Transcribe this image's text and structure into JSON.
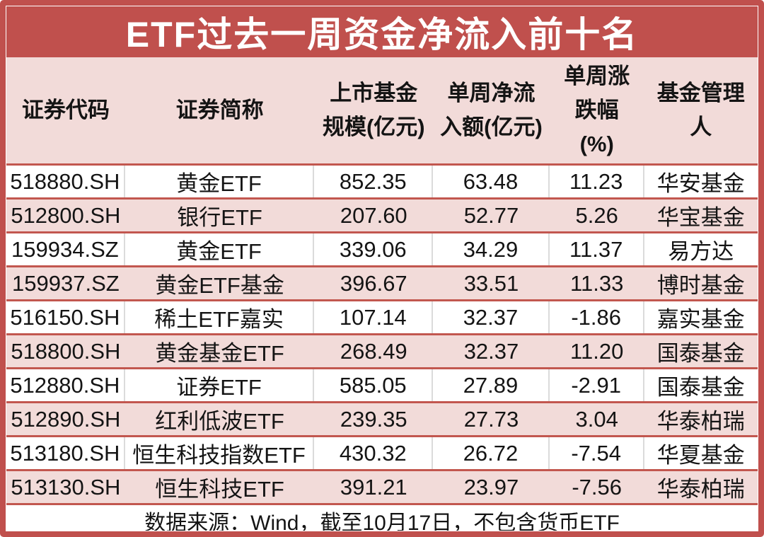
{
  "title": "ETF过去一周资金净流入前十名",
  "colors": {
    "frame_red": "#C0504D",
    "separator_red": "#C2574F",
    "header_pink": "#F2DBD9",
    "row_pink": "#F2DBD9",
    "row_white": "#FFFFFF",
    "divider_gray": "#DBDBDB",
    "title_text": "#FFFFFF",
    "body_text": "#141414"
  },
  "table": {
    "header": [
      {
        "lines": [
          "证券代码"
        ]
      },
      {
        "lines": [
          "证券简称"
        ]
      },
      {
        "lines": [
          "上市基金",
          "规模(亿元)"
        ]
      },
      {
        "lines": [
          "单周净流",
          "入额(亿元)"
        ]
      },
      {
        "lines": [
          "单周涨",
          "跌幅",
          "(%)"
        ]
      },
      {
        "lines": [
          "基金管理",
          "人"
        ]
      }
    ],
    "rows": [
      {
        "code": "518880.SH",
        "name": "黄金ETF",
        "scale": "852.35",
        "inflow": "63.48",
        "change": "11.23",
        "manager": "华安基金"
      },
      {
        "code": "512800.SH",
        "name": "银行ETF",
        "scale": "207.60",
        "inflow": "52.77",
        "change": "5.26",
        "manager": "华宝基金"
      },
      {
        "code": "159934.SZ",
        "name": "黄金ETF",
        "scale": "339.06",
        "inflow": "34.29",
        "change": "11.37",
        "manager": "易方达"
      },
      {
        "code": "159937.SZ",
        "name": "黄金ETF基金",
        "scale": "396.67",
        "inflow": "33.51",
        "change": "11.33",
        "manager": "博时基金"
      },
      {
        "code": "516150.SH",
        "name": "稀土ETF嘉实",
        "scale": "107.14",
        "inflow": "32.37",
        "change": "-1.86",
        "manager": "嘉实基金"
      },
      {
        "code": "518800.SH",
        "name": "黄金基金ETF",
        "scale": "268.49",
        "inflow": "32.37",
        "change": "11.20",
        "manager": "国泰基金"
      },
      {
        "code": "512880.SH",
        "name": "证券ETF",
        "scale": "585.05",
        "inflow": "27.89",
        "change": "-2.91",
        "manager": "国泰基金"
      },
      {
        "code": "512890.SH",
        "name": "红利低波ETF",
        "scale": "239.35",
        "inflow": "27.73",
        "change": "3.04",
        "manager": "华泰柏瑞"
      },
      {
        "code": "513180.SH",
        "name": "恒生科技指数ETF",
        "scale": "430.32",
        "inflow": "26.72",
        "change": "-7.54",
        "manager": "华夏基金"
      },
      {
        "code": "513130.SH",
        "name": "恒生科技ETF",
        "scale": "391.21",
        "inflow": "23.97",
        "change": "-7.56",
        "manager": "华泰柏瑞"
      }
    ],
    "footer": "数据来源：Wind，截至10月17日，不包含货币ETF"
  },
  "chart_data": {
    "type": "table",
    "title": "ETF过去一周资金净流入前十名",
    "columns": [
      "证券代码",
      "证券简称",
      "上市基金规模(亿元)",
      "单周净流入额(亿元)",
      "单周涨跌幅(%)",
      "基金管理人"
    ],
    "rows": [
      [
        "518880.SH",
        "黄金ETF",
        852.35,
        63.48,
        11.23,
        "华安基金"
      ],
      [
        "512800.SH",
        "银行ETF",
        207.6,
        52.77,
        5.26,
        "华宝基金"
      ],
      [
        "159934.SZ",
        "黄金ETF",
        339.06,
        34.29,
        11.37,
        "易方达"
      ],
      [
        "159937.SZ",
        "黄金ETF基金",
        396.67,
        33.51,
        11.33,
        "博时基金"
      ],
      [
        "516150.SH",
        "稀土ETF嘉实",
        107.14,
        32.37,
        -1.86,
        "嘉实基金"
      ],
      [
        "518800.SH",
        "黄金基金ETF",
        268.49,
        32.37,
        11.2,
        "国泰基金"
      ],
      [
        "512880.SH",
        "证券ETF",
        585.05,
        27.89,
        -2.91,
        "国泰基金"
      ],
      [
        "512890.SH",
        "红利低波ETF",
        239.35,
        27.73,
        3.04,
        "华泰柏瑞"
      ],
      [
        "513180.SH",
        "恒生科技指数ETF",
        430.32,
        26.72,
        -7.54,
        "华夏基金"
      ],
      [
        "513130.SH",
        "恒生科技ETF",
        391.21,
        23.97,
        -7.56,
        "华泰柏瑞"
      ]
    ],
    "source_note": "数据来源：Wind，截至10月17日，不包含货币ETF"
  }
}
